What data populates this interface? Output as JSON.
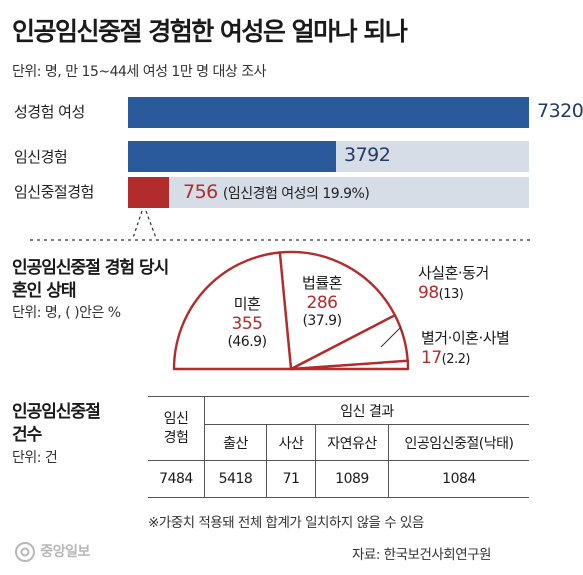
{
  "header": {
    "title": "인공임신중절 경험한 여성은 얼마나 되나",
    "subtitle": "단위: 명, 만 15~44세 여성 1만 명 대상 조사"
  },
  "colors": {
    "bar_blue": "#2b5a9c",
    "bar_red": "#b22c2c",
    "track": "#d6dde6",
    "accent_red": "#b22c2c"
  },
  "bars": [
    {
      "label": "성경험 여성",
      "value": 7320,
      "value_text": "7320",
      "note": ""
    },
    {
      "label": "임신경험",
      "value": 3792,
      "value_text": "3792",
      "note": ""
    },
    {
      "label": "임신중절경험",
      "value": 756,
      "value_text": "756",
      "note": "(임신경험 여성의 19.9%)"
    }
  ],
  "marital": {
    "title_line1": "인공임신중절 경험 당시",
    "title_line2": "혼인 상태",
    "unit": "단위: 명, ( )안은 %",
    "slices": [
      {
        "name": "미혼",
        "value": 355,
        "value_text": "355",
        "pct": 46.9,
        "pct_text": "(46.9)"
      },
      {
        "name": "법률혼",
        "value": 286,
        "value_text": "286",
        "pct": 37.9,
        "pct_text": "(37.9)"
      },
      {
        "name": "사실혼·동거",
        "value": 98,
        "value_text": "98",
        "pct": 13,
        "pct_text": "(13)"
      },
      {
        "name": "별거·이혼·사별",
        "value": 17,
        "value_text": "17",
        "pct": 2.2,
        "pct_text": "(2.2)"
      }
    ]
  },
  "counts": {
    "title_line1": "인공임신중절",
    "title_line2": "건수",
    "unit": "단위: 건",
    "head_pregnancy_line1": "임신",
    "head_pregnancy_line2": "경험",
    "head_result": "임신 결과",
    "columns": [
      "출산",
      "사산",
      "자연유산",
      "인공임신중절(낙태)"
    ],
    "pregnancy_total": "7484",
    "values": [
      "5418",
      "71",
      "1089",
      "1084"
    ]
  },
  "footnote": "※가중치 적용돼 전체 합계가 일치하지 않을 수 있음",
  "source": "자료: 한국보건사회연구원",
  "logo_text": "중앙일보",
  "chart_data": [
    {
      "type": "bar",
      "categories": [
        "성경험 여성",
        "임신경험",
        "임신중절경험"
      ],
      "values": [
        7320,
        3792,
        756
      ],
      "title": "인공임신중절 경험한 여성은 얼마나 되나",
      "xlabel": "",
      "ylabel": "",
      "ylim": [
        0,
        7320
      ]
    },
    {
      "type": "pie",
      "categories": [
        "미혼",
        "법률혼",
        "사실혼·동거",
        "별거·이혼·사별"
      ],
      "values": [
        355,
        286,
        98,
        17
      ],
      "percentages": [
        46.9,
        37.9,
        13,
        2.2
      ],
      "title": "인공임신중절 경험 당시 혼인 상태"
    },
    {
      "type": "table",
      "title": "인공임신중절 건수",
      "columns": [
        "임신 경험",
        "출산",
        "사산",
        "자연유산",
        "인공임신중절(낙태)"
      ],
      "rows": [
        [
          "7484",
          "5418",
          "71",
          "1089",
          "1084"
        ]
      ]
    }
  ]
}
